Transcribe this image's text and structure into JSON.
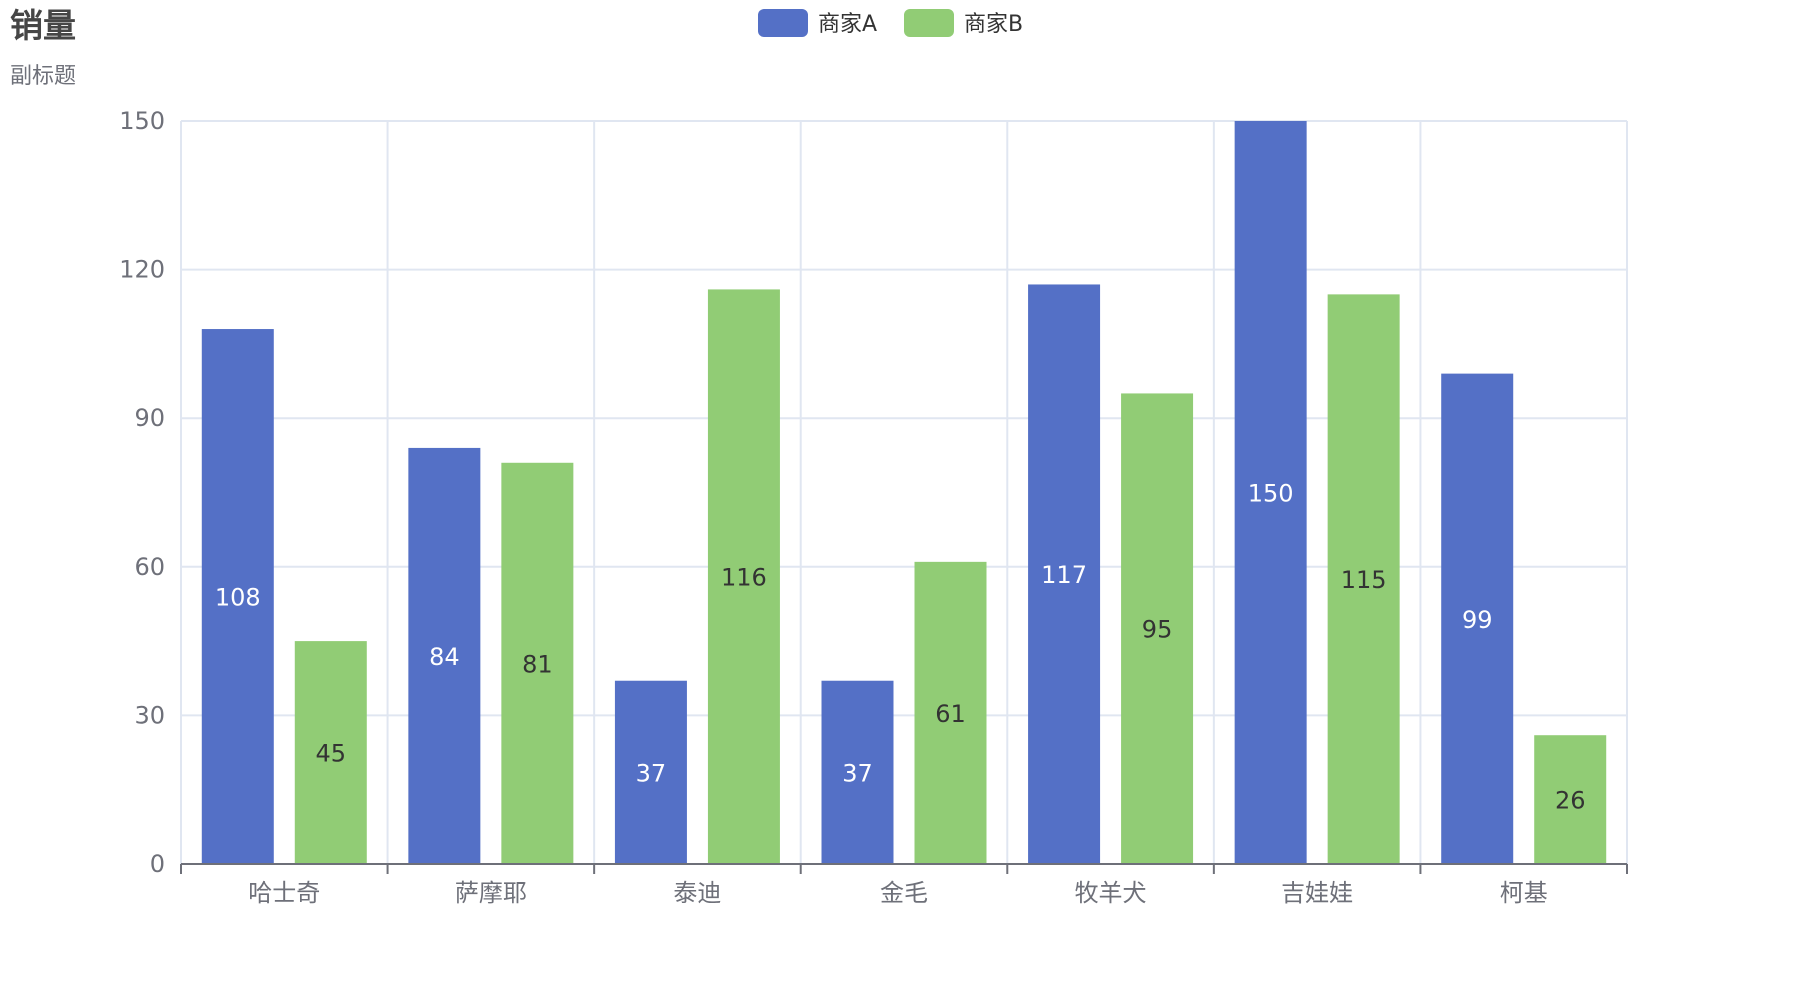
{
  "chart_data": {
    "type": "bar",
    "title": "销量",
    "subtitle": "副标题",
    "categories": [
      "哈士奇",
      "萨摩耶",
      "泰迪",
      "金毛",
      "牧羊犬",
      "吉娃娃",
      "柯基"
    ],
    "series": [
      {
        "name": "商家A",
        "values": [
          108,
          84,
          37,
          37,
          117,
          150,
          99
        ],
        "color": "#5470c6",
        "label_color": "#ffffff"
      },
      {
        "name": "商家B",
        "values": [
          45,
          81,
          116,
          61,
          95,
          115,
          26
        ],
        "color": "#91cc75",
        "label_color": "#333333"
      }
    ],
    "ylim": [
      0,
      150
    ],
    "yticks": [
      0,
      30,
      60,
      90,
      120,
      150
    ],
    "xlabel": "",
    "ylabel": "",
    "grid": true,
    "legend": "top-center",
    "data_labels": "inside-middle"
  }
}
